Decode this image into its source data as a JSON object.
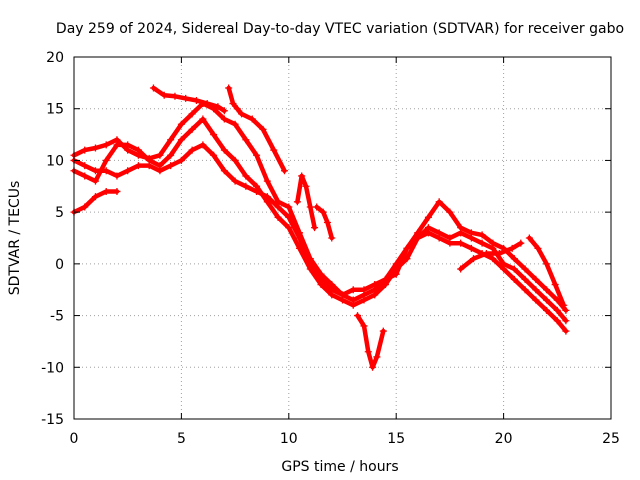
{
  "chart_data": {
    "type": "scatter",
    "title": "Day 259 of 2024, Sidereal Day-to-day VTEC variation (SDTVAR) for receiver gabo",
    "xlabel": "GPS time / hours",
    "ylabel": "SDTVAR / TECUs",
    "xlim": [
      0,
      25
    ],
    "ylim": [
      -15,
      20
    ],
    "xticks": [
      0,
      5,
      10,
      15,
      20,
      25
    ],
    "yticks": [
      -15,
      -10,
      -5,
      0,
      5,
      10,
      15,
      20
    ],
    "grid": true,
    "marker": "plus",
    "color": "#ff0000",
    "series": [
      {
        "x": [
          0.0,
          0.5,
          1.0,
          1.5,
          2.0,
          2.5,
          3.0,
          3.5,
          4.0,
          4.5,
          5.0,
          5.5,
          6.0,
          6.5,
          7.0,
          7.5,
          8.0,
          8.5,
          9.0,
          9.5,
          10.0,
          10.5,
          11.0,
          11.5,
          12.0,
          12.5,
          13.0,
          13.5,
          14.0,
          14.5,
          15.0,
          15.5,
          16.0,
          16.5,
          17.0,
          17.5,
          18.0,
          18.5,
          19.0,
          19.5,
          20.0,
          20.5,
          21.0,
          21.5,
          22.0,
          22.5,
          22.9
        ],
        "y": [
          10.5,
          11.0,
          11.2,
          11.5,
          12.0,
          11.0,
          10.5,
          10.2,
          10.5,
          12.0,
          13.5,
          14.5,
          15.5,
          15.0,
          14.0,
          13.5,
          12.0,
          10.5,
          8.0,
          6.0,
          5.5,
          3.0,
          0.5,
          -1.0,
          -2.0,
          -3.0,
          -2.5,
          -2.5,
          -2.0,
          -1.5,
          -1.0,
          1.5,
          3.0,
          4.5,
          6.0,
          5.0,
          3.5,
          3.0,
          2.8,
          2.0,
          1.5,
          0.5,
          -0.5,
          -1.5,
          -2.5,
          -3.5,
          -4.5
        ]
      },
      {
        "x": [
          0.0,
          0.5,
          1.0,
          1.5,
          2.0,
          2.5,
          3.0,
          3.5,
          4.0,
          4.5,
          5.0,
          5.5,
          6.0,
          6.5,
          7.0,
          7.5,
          8.0,
          8.5,
          9.0,
          9.5,
          10.0,
          10.5,
          11.0,
          11.5,
          12.0,
          12.5,
          13.0,
          13.5,
          14.0,
          14.5,
          15.0,
          15.5,
          16.0,
          16.5,
          17.0,
          17.5,
          18.0,
          18.5,
          19.0,
          19.5,
          20.0,
          20.5,
          21.0,
          21.5,
          22.0,
          22.5,
          22.9
        ],
        "y": [
          9.0,
          8.5,
          8.0,
          10.0,
          11.5,
          11.5,
          11.0,
          10.0,
          9.5,
          10.5,
          12.0,
          13.0,
          14.0,
          12.5,
          11.0,
          10.0,
          8.5,
          7.5,
          6.0,
          4.5,
          3.5,
          1.5,
          -0.5,
          -2.0,
          -3.0,
          -3.5,
          -4.0,
          -3.5,
          -3.0,
          -2.0,
          -0.5,
          0.5,
          2.5,
          3.5,
          3.0,
          2.5,
          3.0,
          2.5,
          2.0,
          1.5,
          0.0,
          -0.5,
          -1.5,
          -2.5,
          -3.5,
          -4.5,
          -5.5
        ]
      },
      {
        "x": [
          0.0,
          0.5,
          1.0,
          1.5,
          2.0,
          2.5,
          3.0,
          3.5,
          4.0,
          4.5,
          5.0,
          5.5,
          6.0,
          6.5,
          7.0,
          7.5,
          8.0,
          8.5,
          9.0,
          9.5,
          10.0,
          10.5,
          11.0,
          11.5,
          12.0,
          12.5,
          13.0,
          13.5,
          14.0,
          14.5,
          15.0,
          15.5,
          16.0,
          16.5,
          17.0,
          17.5,
          18.0,
          18.5,
          19.0,
          19.5,
          20.0,
          20.5,
          21.0,
          21.5,
          22.0,
          22.5,
          22.9
        ],
        "y": [
          10.0,
          9.5,
          9.0,
          9.0,
          8.5,
          9.0,
          9.5,
          9.5,
          9.0,
          9.5,
          10.0,
          11.0,
          11.5,
          10.5,
          9.0,
          8.0,
          7.5,
          7.0,
          6.5,
          5.5,
          4.5,
          2.5,
          0.0,
          -1.5,
          -2.5,
          -3.0,
          -3.5,
          -3.0,
          -2.5,
          -1.5,
          0.0,
          1.5,
          2.5,
          3.0,
          2.5,
          2.0,
          2.0,
          1.5,
          1.0,
          0.5,
          -0.5,
          -1.5,
          -2.5,
          -3.5,
          -4.5,
          -5.5,
          -6.5
        ]
      },
      {
        "x": [
          0.0,
          0.5,
          1.0,
          1.5,
          2.0
        ],
        "y": [
          5.0,
          5.5,
          6.5,
          7.0,
          7.0
        ]
      },
      {
        "x": [
          3.7,
          4.2,
          4.7,
          5.2,
          5.7,
          6.2,
          6.7,
          7.0
        ],
        "y": [
          17.0,
          16.3,
          16.2,
          16.0,
          15.8,
          15.5,
          15.2,
          14.8
        ]
      },
      {
        "x": [
          7.2,
          7.4,
          7.6,
          7.8,
          8.3,
          8.8,
          9.3,
          9.8
        ],
        "y": [
          17.0,
          15.5,
          15.0,
          14.5,
          14.0,
          13.0,
          11.0,
          9.0
        ]
      },
      {
        "x": [
          10.4,
          10.6,
          10.8,
          11.0,
          11.2
        ],
        "y": [
          6.0,
          8.5,
          7.5,
          5.5,
          3.5
        ]
      },
      {
        "x": [
          11.3,
          11.6,
          11.8,
          12.0
        ],
        "y": [
          5.5,
          5.0,
          4.0,
          2.5
        ]
      },
      {
        "x": [
          13.2,
          13.5,
          13.7,
          13.9,
          14.1,
          14.4
        ],
        "y": [
          -5.0,
          -6.0,
          -8.5,
          -10.0,
          -9.0,
          -6.5
        ]
      },
      {
        "x": [
          18.0,
          18.6,
          19.2,
          19.8,
          20.4,
          20.8
        ],
        "y": [
          -0.5,
          0.5,
          1.0,
          1.0,
          1.5,
          2.0
        ]
      },
      {
        "x": [
          21.2,
          21.6,
          22.0,
          22.4,
          22.8
        ],
        "y": [
          2.5,
          1.5,
          0.0,
          -2.0,
          -4.0
        ]
      }
    ]
  }
}
